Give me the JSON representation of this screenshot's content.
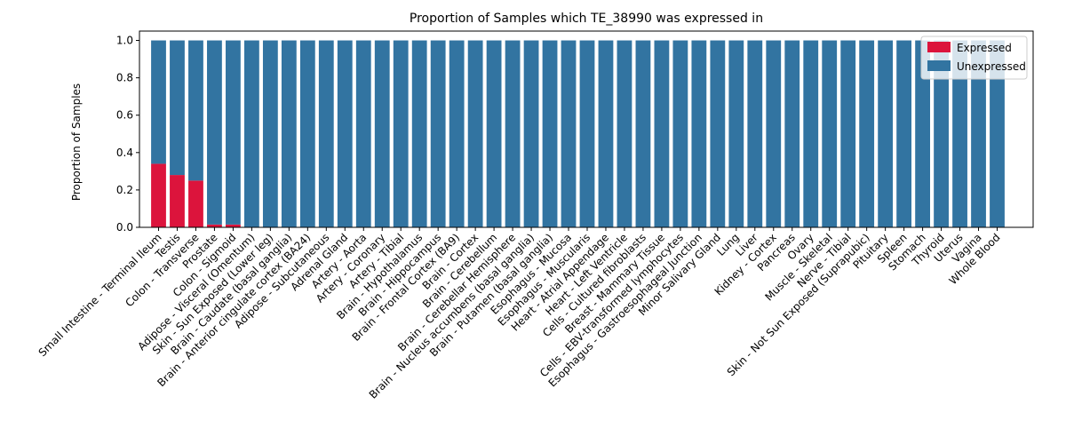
{
  "chart_data": {
    "type": "bar",
    "stacked": true,
    "title": "Proportion of Samples which TE_38990 was expressed in",
    "xlabel": "",
    "ylabel": "Proportion of Samples",
    "ylim": [
      0,
      1.05
    ],
    "yticks": [
      "0.0",
      "0.2",
      "0.4",
      "0.6",
      "0.8",
      "1.0"
    ],
    "legend_position": "top-right",
    "categories": [
      "Small Intestine - Terminal Ileum",
      "Testis",
      "Colon - Transverse",
      "Prostate",
      "Colon - Sigmoid",
      "Adipose - Visceral (Omentum)",
      "Skin - Sun Exposed (Lower leg)",
      "Brain - Caudate (basal ganglia)",
      "Brain - Anterior cingulate cortex (BA24)",
      "Adipose - Subcutaneous",
      "Adrenal Gland",
      "Artery - Aorta",
      "Artery - Coronary",
      "Artery - Tibial",
      "Brain - Hypothalamus",
      "Brain - Hippocampus",
      "Brain - Frontal Cortex (BA9)",
      "Brain - Cortex",
      "Brain - Cerebellum",
      "Brain - Cerebellar Hemisphere",
      "Brain - Nucleus accumbens (basal ganglia)",
      "Brain - Putamen (basal ganglia)",
      "Esophagus - Mucosa",
      "Esophagus - Muscularis",
      "Heart - Atrial Appendage",
      "Heart - Left Ventricle",
      "Cells - Cultured fibroblasts",
      "Breast - Mammary Tissue",
      "Cells - EBV-transformed lymphocytes",
      "Esophagus - Gastroesophageal Junction",
      "Minor Salivary Gland",
      "Lung",
      "Liver",
      "Kidney - Cortex",
      "Pancreas",
      "Ovary",
      "Muscle - Skeletal",
      "Nerve - Tibial",
      "Skin - Not Sun Exposed (Suprapubic)",
      "Pituitary",
      "Spleen",
      "Stomach",
      "Thyroid",
      "Uterus",
      "Vagina",
      "Whole Blood"
    ],
    "series": [
      {
        "name": "Expressed",
        "color": "#dc143c",
        "values": [
          0.34,
          0.28,
          0.25,
          0.015,
          0.015,
          0,
          0,
          0,
          0,
          0,
          0,
          0,
          0,
          0,
          0,
          0,
          0,
          0,
          0,
          0,
          0,
          0,
          0,
          0,
          0,
          0,
          0,
          0,
          0,
          0,
          0,
          0,
          0,
          0,
          0,
          0,
          0,
          0,
          0,
          0,
          0,
          0,
          0,
          0,
          0,
          0
        ]
      },
      {
        "name": "Unexpressed",
        "color": "#3274a1",
        "values": [
          0.66,
          0.72,
          0.75,
          0.985,
          0.985,
          1,
          1,
          1,
          1,
          1,
          1,
          1,
          1,
          1,
          1,
          1,
          1,
          1,
          1,
          1,
          1,
          1,
          1,
          1,
          1,
          1,
          1,
          1,
          1,
          1,
          1,
          1,
          1,
          1,
          1,
          1,
          1,
          1,
          1,
          1,
          1,
          1,
          1,
          1,
          1,
          1
        ]
      }
    ]
  }
}
